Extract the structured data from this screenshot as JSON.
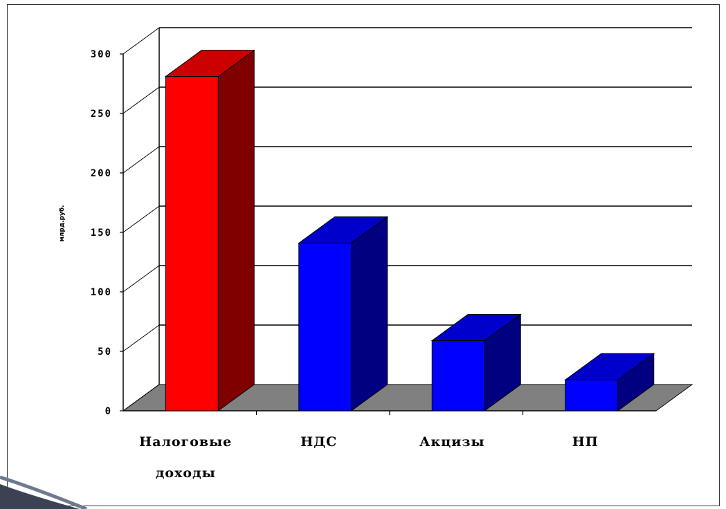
{
  "colors": {
    "background": "#ffffff",
    "grid": "#000000",
    "floor": "#808080",
    "highlight_front": "#ff0000",
    "highlight_side": "#800000",
    "highlight_top": "#cc0000",
    "bar_front": "#0000ff",
    "bar_side": "#000080",
    "bar_top": "#0000cc"
  },
  "chart_data": {
    "type": "bar",
    "style": "3d",
    "title": "",
    "xlabel": "",
    "ylabel": "млрд.руб.",
    "ylim": [
      0,
      300
    ],
    "yticks": [
      0,
      50,
      100,
      150,
      200,
      250,
      300
    ],
    "grid": true,
    "categories": [
      {
        "lines": [
          "Налоговые",
          "доходы"
        ]
      },
      {
        "lines": [
          "НДС"
        ]
      },
      {
        "lines": [
          "Акцизы"
        ]
      },
      {
        "lines": [
          "НП"
        ]
      }
    ],
    "values": [
      281,
      141,
      59,
      26
    ],
    "highlight_index": 0
  }
}
